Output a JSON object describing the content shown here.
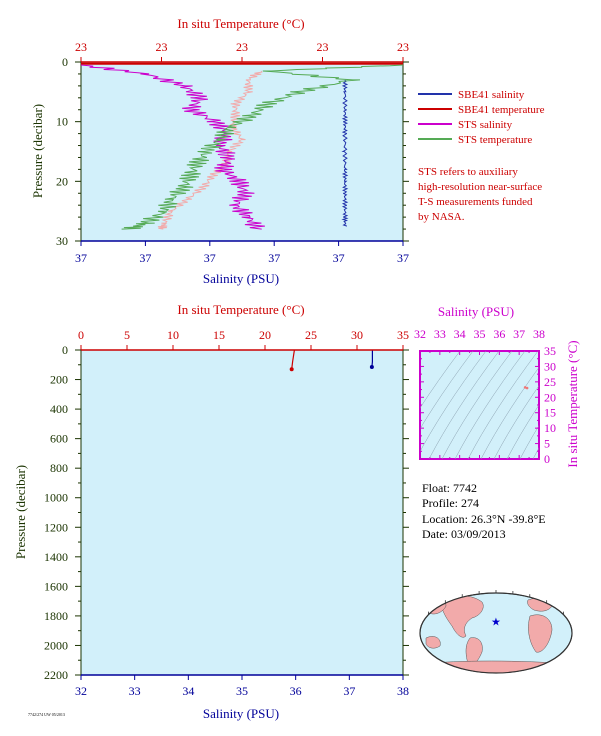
{
  "colors": {
    "temp": "#cc0000",
    "sal": "#000099",
    "pressure": "#1a3300",
    "panel_bg": "#d2f0fa",
    "sbe_sal": "#2233aa",
    "sbe_temp": "#cc0000",
    "sts_sal": "#cc00cc",
    "sts_temp": "#55aa55",
    "ts_axis": "#cc00cc",
    "map_land": "#f2aaaa",
    "map_ocean": "#d2f0fa"
  },
  "top_panel": {
    "temp_axis_label": "In situ Temperature (°C)",
    "temp_tick_labels": [
      "23",
      "23",
      "23",
      "23",
      "23"
    ],
    "pressure_axis_label": "Pressure (decibar)",
    "pressure_tick_labels": [
      "0",
      "10",
      "20",
      "30"
    ],
    "sal_axis_label": "Salinity (PSU)",
    "sal_tick_labels": [
      "37",
      "37",
      "37",
      "37",
      "37",
      "37"
    ],
    "legend": [
      {
        "label": "SBE41 salinity",
        "color": "#2233aa"
      },
      {
        "label": "SBE41 temperature",
        "color": "#cc0000"
      },
      {
        "label": "STS salinity",
        "color": "#cc00cc"
      },
      {
        "label": "STS temperature",
        "color": "#55aa55"
      }
    ],
    "note_lines": [
      "STS refers to auxiliary",
      "high-resolution near-surface",
      "T-S measurements funded",
      "by NASA."
    ]
  },
  "bottom_panel": {
    "temp_axis_label": "In situ Temperature (°C)",
    "pressure_axis_label": "Pressure (decibar)",
    "sal_axis_label": "Salinity (PSU)"
  },
  "ts_inset": {
    "sal_axis_label": "Salinity (PSU)",
    "temp_axis_label": "In situ Temperature (°C)",
    "sal_tick_labels": [
      "32",
      "33",
      "34",
      "35",
      "36",
      "37",
      "38"
    ],
    "temp_tick_labels": [
      "35",
      "30",
      "25",
      "20",
      "15",
      "10",
      "5",
      "0"
    ]
  },
  "float_info": {
    "float_line": "Float:  7742",
    "profile_line": "Profile:  274",
    "location_line": "Location:  26.3°N  -39.8°E",
    "date_line": "Date:  03/09/2013"
  },
  "footer_tag": "7742/274 UW 05/2013",
  "map": {
    "float_lat": 26.3,
    "float_lon": -39.8
  },
  "chart_data": [
    {
      "type": "line",
      "title": "",
      "xlabel": "Salinity (PSU)",
      "x2label": "In situ Temperature (°C)",
      "ylabel": "Pressure (decibar)",
      "ylim": [
        30,
        0
      ],
      "y_ticks": [
        0,
        10,
        20,
        30
      ],
      "grid": false,
      "legend_position": "right",
      "series": [
        {
          "name": "SBE41 salinity",
          "axis": "salinity",
          "pressure": [
            3,
            5,
            8,
            10,
            12,
            15,
            18,
            20,
            22,
            24,
            26,
            27.5
          ],
          "x_frac": [
            0.82,
            0.82,
            0.82,
            0.82,
            0.82,
            0.82,
            0.82,
            0.82,
            0.82,
            0.82,
            0.82,
            0.82
          ]
        },
        {
          "name": "SBE41 temperature",
          "axis": "temperature",
          "pressure": [
            0,
            0.5
          ],
          "x_frac": [
            0.0,
            1.0
          ]
        },
        {
          "name": "STS salinity",
          "axis": "salinity",
          "pressure": [
            0.5,
            2,
            4,
            6,
            8,
            10,
            12,
            14,
            16,
            18,
            20,
            22,
            24,
            26,
            28
          ],
          "x_frac": [
            0.0,
            0.2,
            0.32,
            0.37,
            0.34,
            0.42,
            0.45,
            0.43,
            0.46,
            0.44,
            0.49,
            0.51,
            0.48,
            0.52,
            0.55
          ]
        },
        {
          "name": "STS temperature",
          "axis": "temperature",
          "pressure": [
            0.5,
            1.5,
            3,
            5,
            7,
            9,
            11,
            13,
            15,
            17,
            19,
            21,
            23,
            25,
            27,
            28
          ],
          "x_frac": [
            1.0,
            0.58,
            0.84,
            0.68,
            0.58,
            0.53,
            0.46,
            0.43,
            0.39,
            0.36,
            0.34,
            0.32,
            0.28,
            0.26,
            0.2,
            0.15
          ]
        }
      ],
      "extra_series": [
        {
          "name": "",
          "color_key": "map_land",
          "pressure": [
            1.5,
            3,
            5,
            7,
            9,
            11,
            13,
            15,
            17,
            19,
            21,
            23,
            25,
            27,
            28
          ],
          "x_frac": [
            0.56,
            0.52,
            0.52,
            0.48,
            0.48,
            0.47,
            0.5,
            0.46,
            0.45,
            0.41,
            0.38,
            0.33,
            0.28,
            0.26,
            0.25
          ]
        }
      ]
    },
    {
      "type": "line",
      "title": "",
      "xlabel": "Salinity (PSU)",
      "x2label": "In situ Temperature (°C)",
      "ylabel": "Pressure (decibar)",
      "xlim": [
        32,
        38
      ],
      "x_ticks": [
        32,
        33,
        34,
        35,
        36,
        37,
        38
      ],
      "x2lim": [
        0,
        35
      ],
      "x2_ticks": [
        0,
        5,
        10,
        15,
        20,
        25,
        30,
        35
      ],
      "ylim": [
        2200,
        0
      ],
      "y_ticks": [
        0,
        200,
        400,
        600,
        800,
        1000,
        1200,
        1400,
        1600,
        1800,
        2000,
        2200
      ],
      "grid": false,
      "series": [
        {
          "name": "",
          "axis": "temperature",
          "color_key": "temp",
          "x": [
            23.2,
            23.0,
            22.9
          ],
          "pressure": [
            0,
            80,
            130
          ]
        },
        {
          "name": "",
          "axis": "salinity",
          "color_key": "sal",
          "x": [
            37.43,
            37.43,
            37.42
          ],
          "pressure": [
            0,
            80,
            115
          ]
        }
      ]
    },
    {
      "type": "scatter",
      "title": "",
      "xlabel": "Salinity (PSU)",
      "ylabel": "In situ Temperature (°C)",
      "xlim": [
        32,
        38
      ],
      "ylim": [
        0,
        35
      ],
      "x_ticks": [
        32,
        33,
        34,
        35,
        36,
        37,
        38
      ],
      "y_ticks": [
        0,
        5,
        10,
        15,
        20,
        25,
        30,
        35
      ],
      "series": [
        {
          "name": "",
          "x": [
            37.3,
            37.4
          ],
          "y": [
            23.2,
            23.0
          ]
        }
      ]
    }
  ]
}
